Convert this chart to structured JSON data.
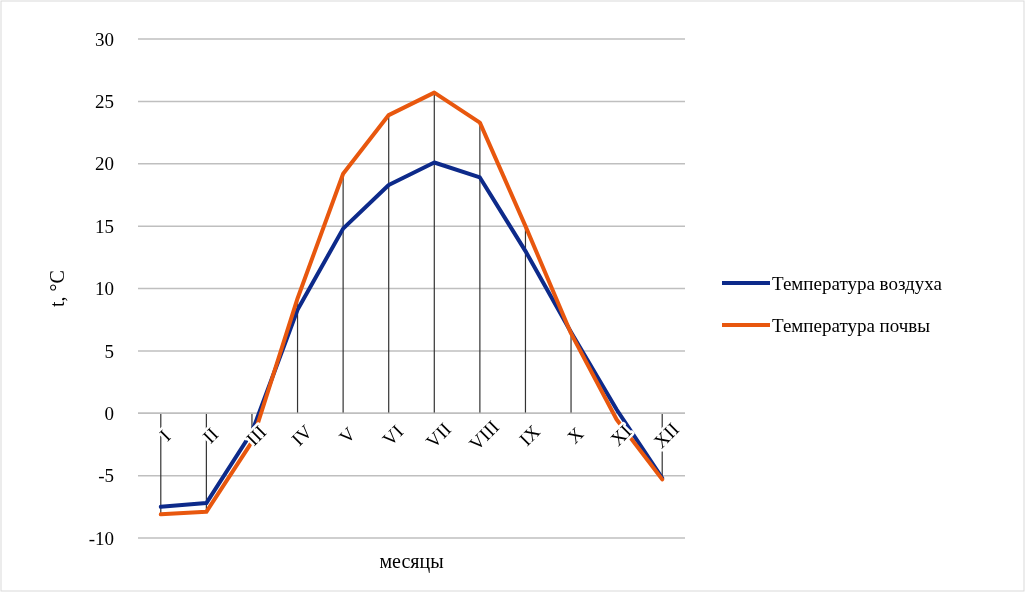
{
  "chart_data": {
    "type": "line",
    "xlabel": "месяцы",
    "ylabel": "t, °C",
    "categories": [
      "I",
      "II",
      "III",
      "IV",
      "V",
      "VI",
      "VII",
      "VIII",
      "IX",
      "X",
      "XI",
      "XII"
    ],
    "series": [
      {
        "name": "Температура воздуха",
        "color": "#0d2a8a",
        "values": [
          -7.5,
          -7.2,
          -1.5,
          8.3,
          14.8,
          18.3,
          20.1,
          18.9,
          13,
          6.5,
          0.3,
          -5.2
        ]
      },
      {
        "name": "Температура почвы",
        "color": "#e8570e",
        "values": [
          -8.1,
          -7.9,
          -2.3,
          9.2,
          19.2,
          23.9,
          25.7,
          23.3,
          15,
          6.4,
          -0.5,
          -5.3
        ]
      }
    ],
    "ylim": [
      -10,
      30
    ],
    "yticks": [
      -10,
      -5,
      0,
      5,
      10,
      15,
      20,
      25,
      30
    ],
    "grid": "y",
    "legend": "right",
    "marker": "none",
    "line_style": "solid"
  }
}
